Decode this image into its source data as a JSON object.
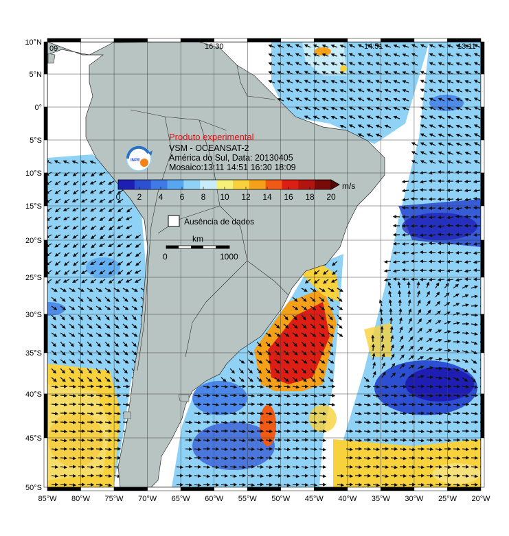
{
  "map": {
    "title_experimental": "Produto experimental",
    "title_product": "VSM - OCEANSAT-2",
    "title_region": "América do Sul, Data: 20130405",
    "title_mosaic": "Mosaico:13:11 14:51 16:30 18:09",
    "logo_text": "INPE",
    "colorbar_unit": "m/s",
    "colorbar_ticks": [
      "0",
      "2",
      "4",
      "6",
      "8",
      "10",
      "12",
      "14",
      "16",
      "18",
      "20"
    ],
    "colorbar_colors": [
      "#1e1eb4",
      "#2d4fd2",
      "#3f7ae6",
      "#59a6f0",
      "#8fd2f5",
      "#c8ecf8",
      "#f5f07a",
      "#f8d23c",
      "#f5a019",
      "#f05a14",
      "#dc1e14",
      "#b4140f",
      "#780a0a"
    ],
    "no_data_label": "Ausência de dados",
    "scale_unit": "km",
    "scale_start": "0",
    "scale_end": "1000",
    "pass_labels": [
      "09",
      "16:30",
      "14:51",
      "13:11"
    ],
    "lat_labels": [
      "10°N",
      "5°N",
      "0°",
      "5°S",
      "10°S",
      "15°S",
      "20°S",
      "25°S",
      "30°S",
      "35°S",
      "40°S",
      "45°S",
      "50°S"
    ],
    "lon_labels": [
      "85°W",
      "80°W",
      "75°W",
      "70°W",
      "65°W",
      "60°W",
      "55°W",
      "50°W",
      "45°W",
      "40°W",
      "35°W",
      "30°W",
      "25°W",
      "20°W"
    ],
    "colors": {
      "ocean_nodata": "#ffffff",
      "land": "#b8c4c2",
      "grid": "#404040",
      "arrow": "#111111"
    }
  }
}
